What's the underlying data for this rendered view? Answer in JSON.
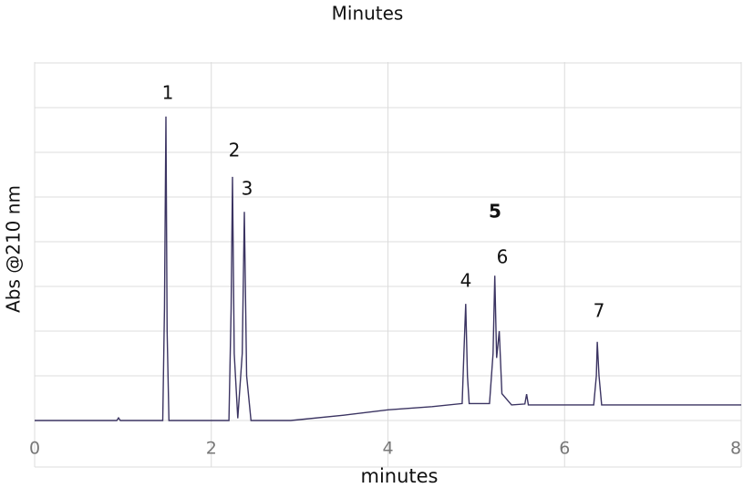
{
  "chart_data": {
    "type": "line",
    "title": "Minutes",
    "xlabel": "minutes",
    "ylabel": "Abs @210 nm",
    "x": [
      0,
      0.93,
      0.95,
      0.97,
      1.15,
      1.45,
      1.47,
      1.486,
      1.5,
      1.52,
      2.2,
      2.225,
      2.24,
      2.26,
      2.3,
      2.35,
      2.374,
      2.4,
      2.45,
      2.9,
      3.5,
      4.0,
      4.5,
      4.84,
      4.86,
      4.88,
      4.9,
      4.92,
      5.15,
      5.19,
      5.21,
      5.23,
      5.26,
      5.29,
      5.4,
      5.55,
      5.57,
      5.59,
      6.33,
      6.36,
      6.37,
      6.39,
      6.42,
      8
    ],
    "values": [
      0,
      0,
      0.06,
      0,
      0,
      0,
      2.5,
      6.8,
      2.0,
      0,
      0,
      2.5,
      5.45,
      1.5,
      0.05,
      1.5,
      4.67,
      1.0,
      0,
      0,
      0.12,
      0.24,
      0.31,
      0.38,
      1.5,
      2.61,
      1.0,
      0.38,
      0.38,
      1.5,
      3.24,
      1.4,
      2.0,
      0.6,
      0.35,
      0.37,
      0.59,
      0.35,
      0.35,
      1.0,
      1.76,
      1.0,
      0.35,
      0.35
    ],
    "color": "#3b3462",
    "xlim": [
      0,
      8
    ],
    "xticks": [
      0,
      2,
      4,
      6,
      8
    ],
    "ylim": [
      -1.04,
      8.02
    ],
    "yticks": [
      0,
      1,
      2,
      3,
      4,
      5,
      6,
      7,
      8
    ],
    "grid": true,
    "annotations": [
      "1",
      "2",
      "3",
      "4",
      "5",
      "6",
      "7"
    ]
  }
}
